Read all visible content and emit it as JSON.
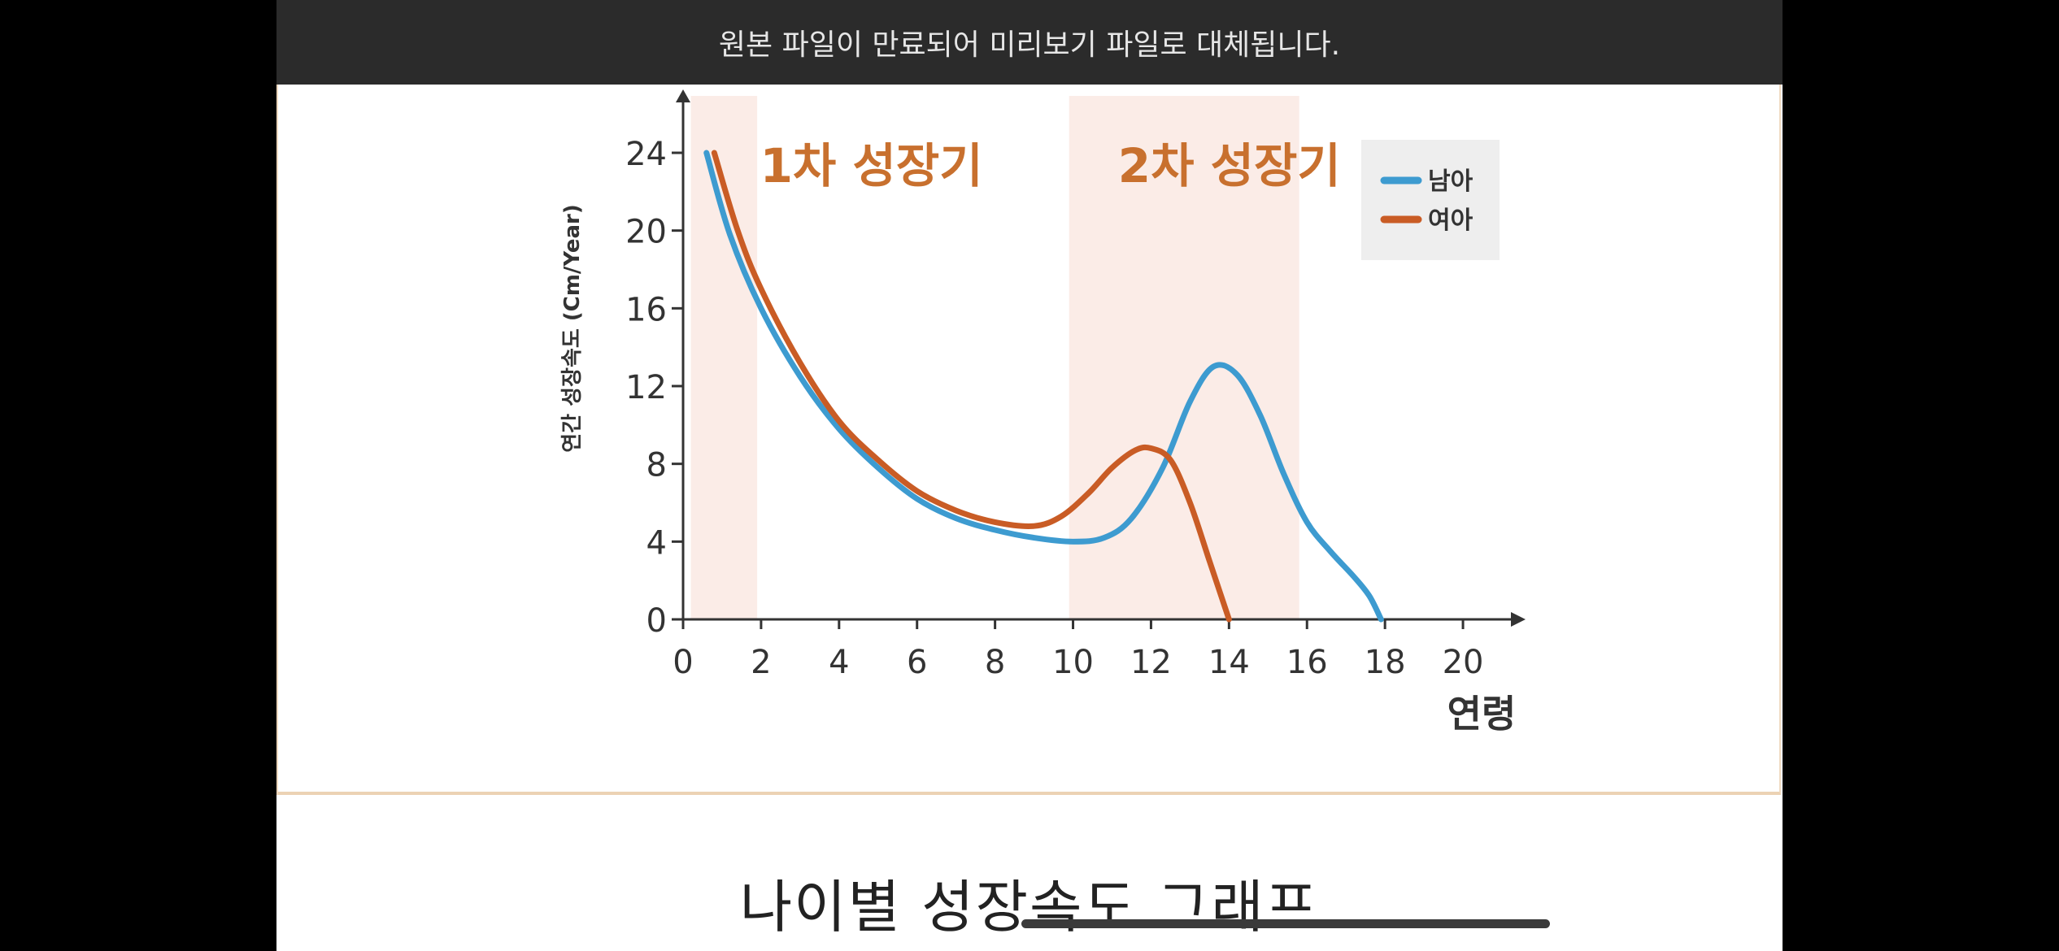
{
  "notice": {
    "text": "원본 파일이 만료되어 미리보기 파일로 대체됩니다."
  },
  "caption": {
    "text": "나이별 성장속도 그래프"
  },
  "colors": {
    "boys": "#3d9bd0",
    "girls": "#c95c25",
    "band": "#fbece7",
    "label": "#c8702e"
  },
  "chart_data": {
    "type": "line",
    "ylabel": "연간 성장속도 (Cm/Year)",
    "xlabel": "연령",
    "xlim": [
      0,
      21
    ],
    "ylim": [
      0,
      26
    ],
    "x_ticks": [
      "0",
      "2",
      "4",
      "6",
      "8",
      "10",
      "12",
      "14",
      "16",
      "18",
      "20"
    ],
    "y_ticks": [
      "0",
      "4",
      "8",
      "12",
      "16",
      "20",
      "24"
    ],
    "bands": [
      {
        "label": "1차 성장기",
        "x0": 0.2,
        "x1": 1.9
      },
      {
        "label": "2차 성장기",
        "x0": 9.9,
        "x1": 15.8
      }
    ],
    "legend": {
      "position": "top-right",
      "entries": [
        "남아",
        "여아"
      ]
    },
    "series": [
      {
        "name": "남아",
        "x": [
          0.6,
          1.2,
          2,
          3,
          4,
          5,
          6,
          7,
          8,
          9,
          10,
          10.8,
          11.5,
          12.3,
          13,
          13.6,
          14.2,
          14.8,
          15.4,
          16,
          16.6,
          17.2,
          17.6,
          17.9
        ],
        "y": [
          24,
          19.8,
          16,
          12.5,
          9.8,
          7.8,
          6.2,
          5.2,
          4.6,
          4.2,
          4.0,
          4.2,
          5.2,
          7.8,
          11.2,
          13.0,
          12.6,
          10.5,
          7.5,
          5.0,
          3.5,
          2.2,
          1.2,
          0
        ]
      },
      {
        "name": "여아",
        "x": [
          0.8,
          1.4,
          2,
          3,
          4,
          5,
          6,
          7,
          8,
          9,
          9.7,
          10.4,
          11,
          11.6,
          12,
          12.5,
          13,
          13.5,
          14
        ],
        "y": [
          24,
          20,
          17,
          13.2,
          10.2,
          8.2,
          6.6,
          5.6,
          5.0,
          4.8,
          5.3,
          6.5,
          7.8,
          8.7,
          8.8,
          8.2,
          6.0,
          3.0,
          0
        ]
      }
    ]
  }
}
